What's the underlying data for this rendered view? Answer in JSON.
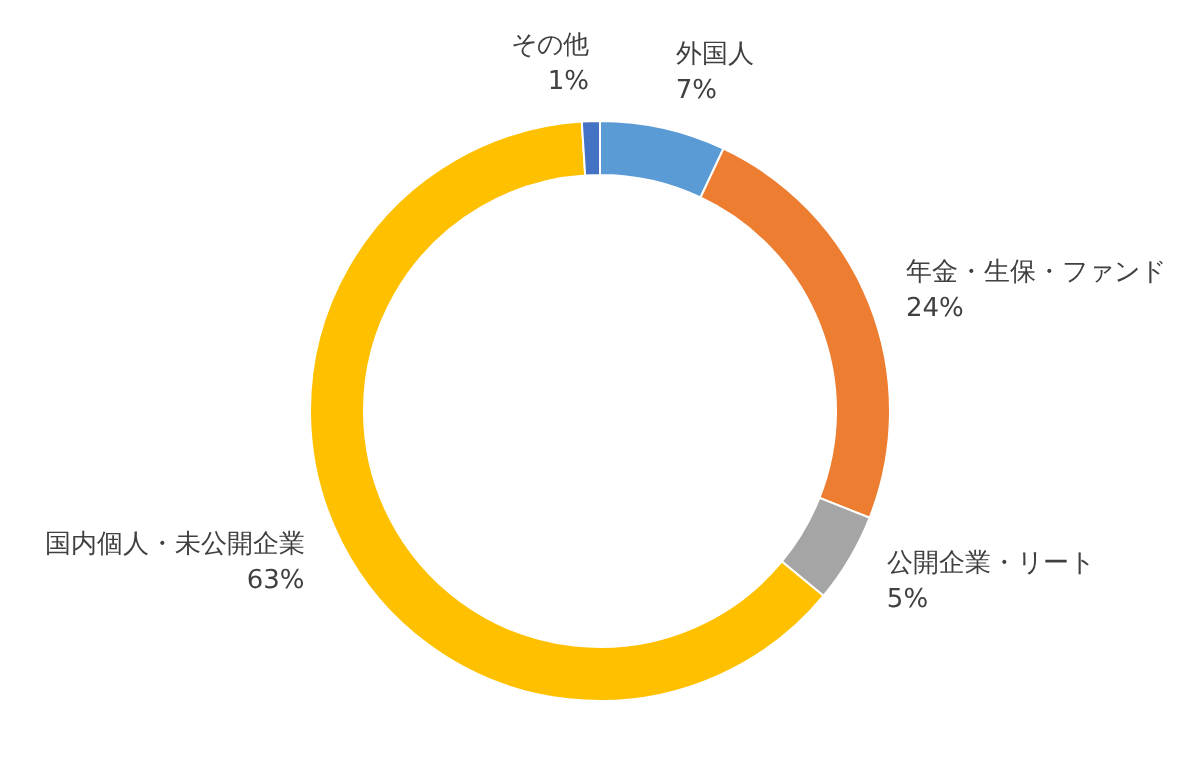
{
  "chart_data": {
    "type": "donut",
    "categories": [
      "外国人",
      "年金・生保・ファンド",
      "公開企業・リート",
      "国内個人・未公開企業",
      "その他"
    ],
    "values": [
      7,
      24,
      5,
      63,
      1
    ],
    "value_labels": [
      "7%",
      "24%",
      "5%",
      "63%",
      "1%"
    ],
    "colors": [
      "#5b9bd5",
      "#ed7d31",
      "#a5a5a5",
      "#ffc000",
      "#4472c4"
    ]
  }
}
